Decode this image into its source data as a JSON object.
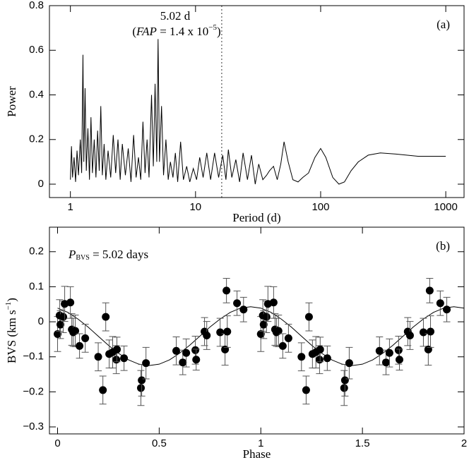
{
  "chart_data": [
    {
      "type": "line",
      "xlabel": "Period (d)",
      "ylabel": "Power",
      "panel_label": "(a)",
      "annotation": [
        "5.02 d",
        "(",
        "FAP",
        " = 1.4 x 10",
        "−5",
        ")"
      ],
      "xscale": "log",
      "xlim": [
        0.68,
        1400
      ],
      "xticks": [
        1,
        10,
        100,
        1000
      ],
      "ylim": [
        -0.06,
        0.8
      ],
      "yticks": [
        0,
        0.2,
        0.4,
        0.6,
        0.8
      ],
      "marker_line": 16.2,
      "color": "#000000",
      "x": [
        1.0,
        1.02,
        1.04,
        1.07,
        1.1,
        1.13,
        1.16,
        1.2,
        1.23,
        1.26,
        1.28,
        1.31,
        1.34,
        1.38,
        1.42,
        1.46,
        1.5,
        1.55,
        1.6,
        1.65,
        1.7,
        1.75,
        1.8,
        1.86,
        1.92,
        2.0,
        2.1,
        2.2,
        2.3,
        2.4,
        2.5,
        2.6,
        2.75,
        2.9,
        3.05,
        3.2,
        3.35,
        3.5,
        3.65,
        3.8,
        3.95,
        4.1,
        4.25,
        4.45,
        4.6,
        4.75,
        4.9,
        5.02,
        5.15,
        5.35,
        5.55,
        5.8,
        6.05,
        6.3,
        6.6,
        6.9,
        7.2,
        7.6,
        8.0,
        8.5,
        9.0,
        9.6,
        10.2,
        10.8,
        11.5,
        12.3,
        13.2,
        14.2,
        15.3,
        16.5,
        17.5,
        18.3,
        19.5,
        21,
        22.5,
        24,
        26,
        28,
        30,
        32,
        34.5,
        37,
        39,
        42,
        45,
        48,
        51,
        55,
        60,
        66,
        72,
        80,
        90,
        100,
        110,
        125,
        140,
        155,
        175,
        200,
        240,
        300,
        400,
        600,
        1000
      ],
      "values": [
        0.02,
        0.17,
        0.03,
        0.12,
        0.01,
        0.15,
        0.04,
        0.2,
        0.05,
        0.58,
        0.1,
        0.43,
        0.06,
        0.25,
        0.02,
        0.3,
        0.05,
        0.2,
        0.03,
        0.24,
        0.06,
        0.35,
        0.04,
        0.18,
        0.02,
        0.15,
        0.03,
        0.22,
        0.05,
        0.2,
        0.02,
        0.18,
        0.04,
        0.16,
        0.01,
        0.22,
        0.03,
        0.12,
        0.02,
        0.28,
        0.05,
        0.2,
        0.03,
        0.4,
        0.08,
        0.45,
        0.1,
        0.65,
        0.1,
        0.35,
        0.04,
        0.2,
        0.02,
        0.1,
        0.03,
        0.14,
        0.01,
        0.19,
        0.02,
        0.08,
        0.01,
        0.07,
        0.02,
        0.12,
        0.03,
        0.14,
        0.02,
        0.14,
        0.03,
        0.13,
        0.02,
        0.155,
        0.03,
        0.11,
        0.01,
        0.14,
        0.02,
        0.13,
        0.0,
        0.09,
        0.02,
        0.04,
        0.06,
        0.08,
        0.02,
        0.09,
        0.19,
        0.1,
        0.02,
        0.01,
        0.03,
        0.05,
        0.12,
        0.16,
        0.12,
        0.03,
        0.0,
        0.01,
        0.06,
        0.1,
        0.13,
        0.14,
        0.135,
        0.125,
        0.125
      ]
    },
    {
      "type": "scatter",
      "xlabel": "Phase",
      "ylabel": [
        "BVS (km s",
        "−1",
        ")"
      ],
      "panel_label": "(b)",
      "annotation": [
        "P",
        "BVS",
        " = 5.02 days"
      ],
      "xlim": [
        -0.04,
        2
      ],
      "xticks": [
        0,
        0.5,
        1,
        1.5,
        2
      ],
      "ylim": [
        -0.32,
        0.27
      ],
      "yticks": [
        {
          "value": -0.3,
          "label": "−0.3"
        },
        {
          "value": -0.2,
          "label": "−0.2"
        },
        {
          "value": -0.1,
          "label": "−0.1"
        },
        0,
        0.1,
        0.2
      ],
      "color": "#000000",
      "x": [
        0.0,
        0.01,
        0.014,
        0.028,
        0.035,
        0.063,
        0.07,
        0.077,
        0.087,
        0.108,
        0.136,
        0.2,
        0.223,
        0.237,
        0.254,
        0.271,
        0.289,
        0.292,
        0.327,
        0.41,
        0.414,
        0.435,
        0.584,
        0.616,
        0.633,
        0.678,
        0.682,
        0.723,
        0.734,
        0.8,
        0.824,
        0.831,
        0.835,
        0.883,
        0.915,
        1.0,
        1.01,
        1.014,
        1.028,
        1.035,
        1.063,
        1.07,
        1.077,
        1.087,
        1.108,
        1.136,
        1.2,
        1.223,
        1.237,
        1.254,
        1.271,
        1.289,
        1.292,
        1.327,
        1.41,
        1.414,
        1.435,
        1.584,
        1.616,
        1.633,
        1.678,
        1.682,
        1.723,
        1.734,
        1.8,
        1.824,
        1.831,
        1.835,
        1.883,
        1.915
      ],
      "values": [
        -0.035,
        0.018,
        -0.008,
        0.014,
        0.051,
        0.055,
        -0.022,
        -0.03,
        -0.026,
        -0.069,
        -0.047,
        -0.1,
        -0.195,
        0.014,
        -0.092,
        -0.087,
        -0.108,
        -0.079,
        -0.104,
        -0.189,
        -0.167,
        -0.118,
        -0.083,
        -0.116,
        -0.089,
        -0.081,
        -0.108,
        -0.028,
        -0.039,
        -0.03,
        -0.079,
        0.089,
        -0.028,
        0.053,
        0.035,
        -0.035,
        0.018,
        -0.008,
        0.014,
        0.051,
        0.055,
        -0.022,
        -0.03,
        -0.026,
        -0.069,
        -0.047,
        -0.1,
        -0.195,
        0.014,
        -0.092,
        -0.087,
        -0.108,
        -0.079,
        -0.104,
        -0.189,
        -0.167,
        -0.118,
        -0.083,
        -0.116,
        -0.089,
        -0.081,
        -0.108,
        -0.028,
        -0.039,
        -0.03,
        -0.079,
        0.089,
        -0.028,
        0.053,
        0.035
      ],
      "errors": [
        0.05,
        0.045,
        0.04,
        0.045,
        0.05,
        0.045,
        0.045,
        0.04,
        0.045,
        0.035,
        0.04,
        0.04,
        0.04,
        0.04,
        0.04,
        0.045,
        0.04,
        0.035,
        0.035,
        0.05,
        0.045,
        0.045,
        0.04,
        0.035,
        0.04,
        0.04,
        0.03,
        0.04,
        0.04,
        0.04,
        0.045,
        0.035,
        0.045,
        0.035,
        0.035,
        0.05,
        0.045,
        0.04,
        0.045,
        0.05,
        0.045,
        0.045,
        0.04,
        0.045,
        0.035,
        0.04,
        0.04,
        0.04,
        0.04,
        0.04,
        0.045,
        0.04,
        0.035,
        0.035,
        0.05,
        0.045,
        0.045,
        0.04,
        0.035,
        0.04,
        0.04,
        0.03,
        0.04,
        0.04,
        0.04,
        0.045,
        0.035,
        0.045,
        0.035,
        0.035
      ],
      "fit_x": [
        0,
        0.05,
        0.1,
        0.15,
        0.2,
        0.25,
        0.3,
        0.35,
        0.4,
        0.45,
        0.5,
        0.55,
        0.6,
        0.65,
        0.7,
        0.75,
        0.8,
        0.85,
        0.9,
        0.95,
        1.0,
        1.05,
        1.1,
        1.15,
        1.2,
        1.25,
        1.3,
        1.35,
        1.4,
        1.45,
        1.5,
        1.55,
        1.6,
        1.65,
        1.7,
        1.75,
        1.8,
        1.85,
        1.9,
        1.95,
        2.0
      ],
      "fit_values": [
        0.039,
        0.027,
        0.008,
        -0.015,
        -0.041,
        -0.067,
        -0.09,
        -0.109,
        -0.121,
        -0.125,
        -0.121,
        -0.109,
        -0.09,
        -0.067,
        -0.041,
        -0.015,
        0.008,
        0.027,
        0.039,
        0.043,
        0.039,
        0.027,
        0.008,
        -0.015,
        -0.041,
        -0.067,
        -0.09,
        -0.109,
        -0.121,
        -0.125,
        -0.121,
        -0.109,
        -0.09,
        -0.067,
        -0.041,
        -0.015,
        0.008,
        0.027,
        0.039,
        0.043,
        0.039
      ]
    }
  ]
}
